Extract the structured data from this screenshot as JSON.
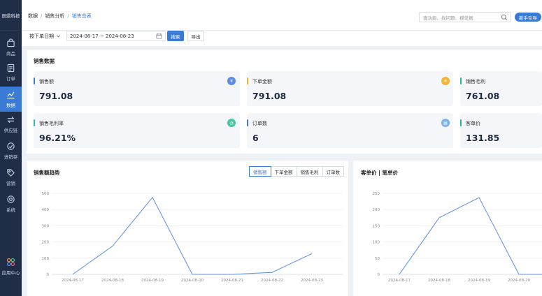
{
  "sidebar": {
    "brand": "辰鼎科技",
    "items": [
      {
        "label": "商品",
        "icon": "shopping-bag-icon"
      },
      {
        "label": "订单",
        "icon": "document-icon"
      },
      {
        "label": "数据",
        "icon": "line-chart-icon"
      },
      {
        "label": "供应链",
        "icon": "exchange-icon"
      },
      {
        "label": "进销存",
        "icon": "warehouse-icon"
      },
      {
        "label": "营销",
        "icon": "tag-icon"
      },
      {
        "label": "系统",
        "icon": "gear-icon"
      }
    ],
    "bottom": {
      "label": "应用中心",
      "icon": "apps-icon"
    }
  },
  "header": {
    "breadcrumb": [
      "数据",
      "销售分析",
      "销售总表"
    ],
    "search_placeholder": "查功能、找问题、搜单据",
    "guide_label": "新手引导"
  },
  "filter": {
    "date_type": "按下单日期",
    "date_range": "2024-08-17 ~ 2024-08-23",
    "search_label": "搜索",
    "export_label": "导出"
  },
  "sales": {
    "title": "销售数据",
    "cards": [
      {
        "label": "销售额",
        "value": "791.08",
        "accent": "#3a7bd5",
        "badge": "¥",
        "badge_color": "#5b8ee0"
      },
      {
        "label": "下单金额",
        "value": "791.08",
        "accent": "#f2b233",
        "badge": "≗",
        "badge_color": "#f0b636"
      },
      {
        "label": "销售毛利",
        "value": "761.08",
        "accent": "#27b5a6"
      },
      {
        "label": "销售毛利率",
        "value": "96.21%",
        "accent": "#27b5a6",
        "badge": "◔",
        "badge_color": "#4cc6a4"
      },
      {
        "label": "订单数",
        "value": "6",
        "accent": "#3a7bd5",
        "badge": "▤",
        "badge_color": "#7ab3ee"
      },
      {
        "label": "客单价",
        "value": "131.85",
        "accent": "#27b5a6"
      }
    ]
  },
  "trend": {
    "title": "销售额趋势",
    "tabs": [
      "销售额",
      "下单金额",
      "销售毛利",
      "订单数"
    ],
    "active_tab": 0
  },
  "unit_price": {
    "title": "客单价 | 笔单价"
  },
  "chart_data": [
    {
      "type": "line",
      "title": "销售额趋势",
      "categories": [
        "2024-08-17",
        "2024-08-18",
        "2024-08-19",
        "2024-08-20",
        "2024-08-21",
        "2024-08-22",
        "2024-08-23"
      ],
      "values": [
        0,
        175,
        475,
        0,
        0,
        12,
        128
      ],
      "yticks": [
        0,
        100,
        200,
        300,
        400,
        500
      ],
      "ylim": [
        0,
        500
      ],
      "color": "#5b8ee0"
    },
    {
      "type": "line",
      "title": "客单价 | 笔单价",
      "categories": [
        "2024-08-17",
        "2024-08-18",
        "2024-08-19",
        "2024-08-20"
      ],
      "values": [
        0,
        175,
        237,
        0
      ],
      "yticks": [
        0,
        50,
        100,
        150,
        200,
        250
      ],
      "ylim": [
        0,
        250
      ],
      "color": "#5b8ee0"
    }
  ]
}
